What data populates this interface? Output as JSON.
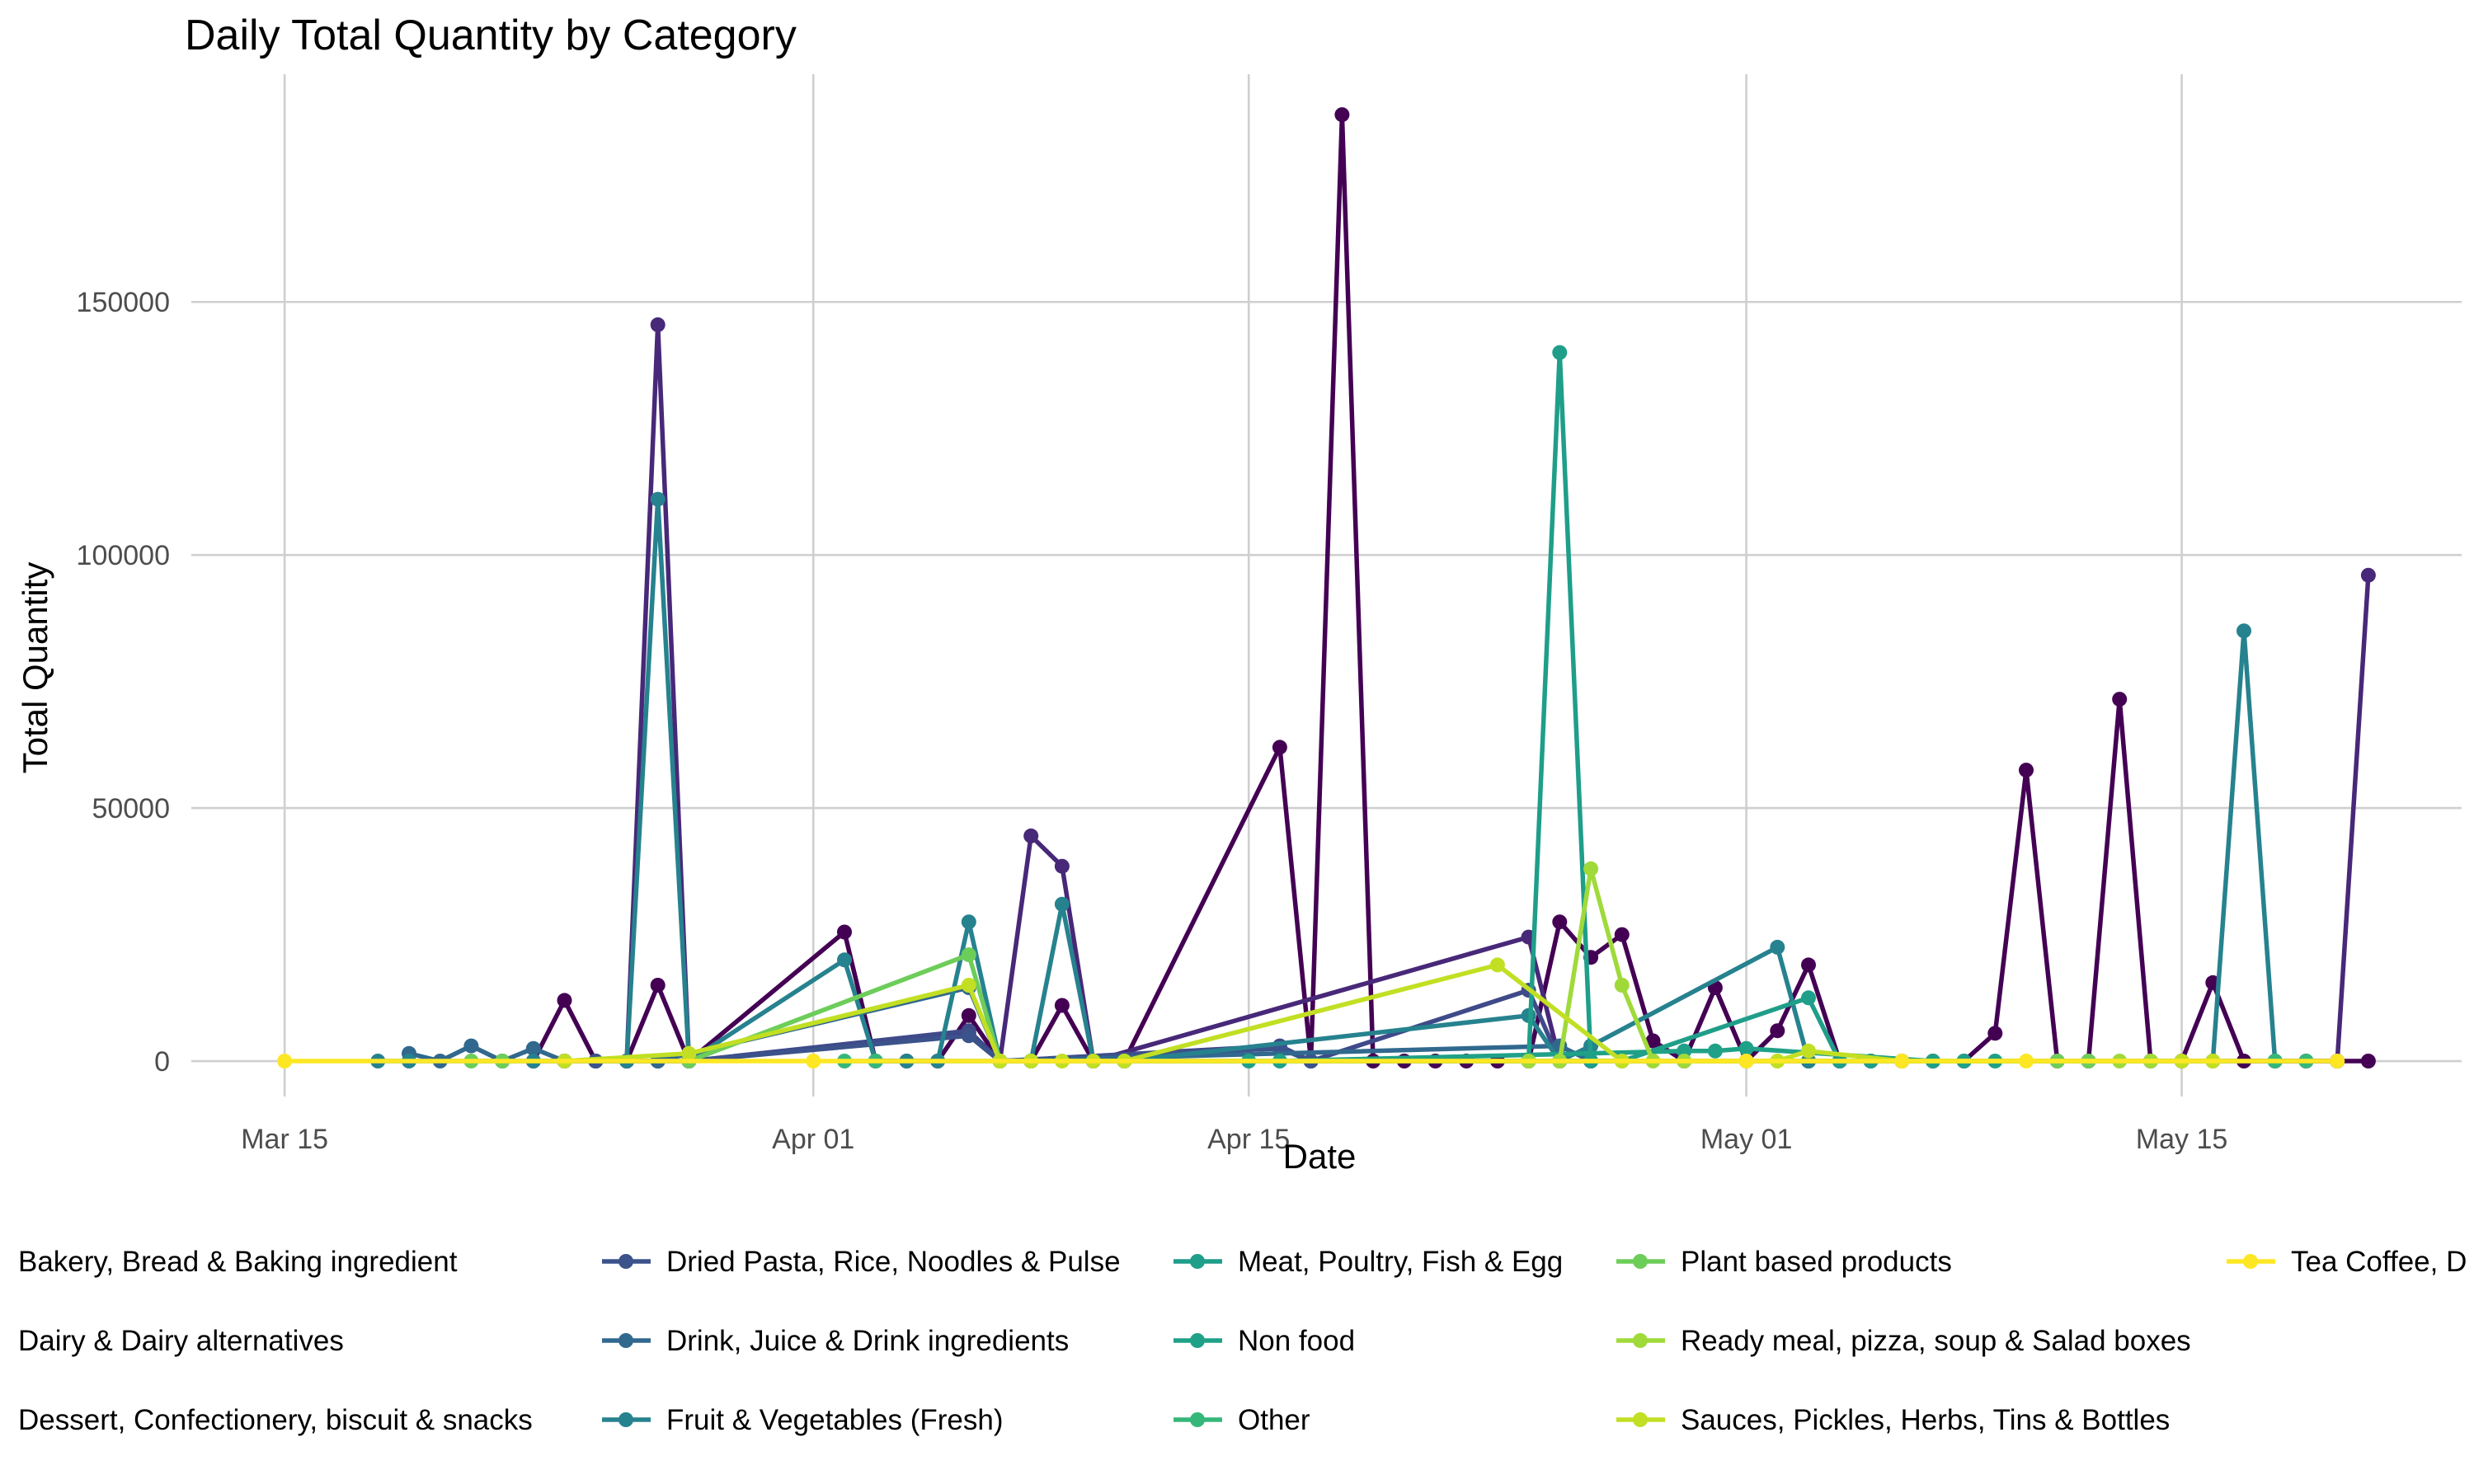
{
  "chart_data": {
    "type": "line",
    "title": "Daily Total Quantity by Category",
    "xlabel": "Date",
    "ylabel": "Total Quantity",
    "x_ticks": [
      "Mar 15",
      "Apr 01",
      "Apr 15",
      "May 01",
      "May 15"
    ],
    "x_tick_dates": [
      "2024-03-15",
      "2024-04-01",
      "2024-04-15",
      "2024-05-01",
      "2024-05-15"
    ],
    "y_ticks": [
      0,
      50000,
      100000,
      150000
    ],
    "y_tick_labels": [
      "0",
      "50000",
      "100000",
      "150000"
    ],
    "xlim": [
      "2024-03-12",
      "2024-05-24"
    ],
    "ylim": [
      -7000,
      195000
    ],
    "grid": true,
    "legend_position": "bottom",
    "series": [
      {
        "name": "Bakery, Bread & Baking ingredient",
        "color": "#440154",
        "points": [
          [
            "2024-03-23",
            0
          ],
          [
            "2024-03-24",
            12000
          ],
          [
            "2024-03-25",
            0
          ],
          [
            "2024-03-26",
            0
          ],
          [
            "2024-03-27",
            15000
          ],
          [
            "2024-03-28",
            0
          ],
          [
            "2024-04-02",
            25500
          ],
          [
            "2024-04-03",
            0
          ],
          [
            "2024-04-04",
            0
          ],
          [
            "2024-04-05",
            0
          ],
          [
            "2024-04-06",
            9000
          ],
          [
            "2024-04-07",
            0
          ],
          [
            "2024-04-08",
            0
          ],
          [
            "2024-04-09",
            11000
          ],
          [
            "2024-04-10",
            0
          ],
          [
            "2024-04-11",
            0
          ],
          [
            "2024-04-16",
            62000
          ],
          [
            "2024-04-17",
            0
          ],
          [
            "2024-04-18",
            187000
          ],
          [
            "2024-04-19",
            0
          ],
          [
            "2024-04-20",
            0
          ],
          [
            "2024-04-21",
            0
          ],
          [
            "2024-04-22",
            0
          ],
          [
            "2024-04-23",
            0
          ],
          [
            "2024-04-24",
            0
          ],
          [
            "2024-04-25",
            27500
          ],
          [
            "2024-04-26",
            20500
          ],
          [
            "2024-04-27",
            25000
          ],
          [
            "2024-04-28",
            4000
          ],
          [
            "2024-04-29",
            0
          ],
          [
            "2024-04-30",
            14500
          ],
          [
            "2024-05-01",
            0
          ],
          [
            "2024-05-02",
            6000
          ],
          [
            "2024-05-03",
            19000
          ],
          [
            "2024-05-04",
            0
          ],
          [
            "2024-05-05",
            0
          ],
          [
            "2024-05-06",
            0
          ],
          [
            "2024-05-07",
            0
          ],
          [
            "2024-05-08",
            0
          ],
          [
            "2024-05-09",
            5500
          ],
          [
            "2024-05-10",
            57500
          ],
          [
            "2024-05-11",
            0
          ],
          [
            "2024-05-12",
            0
          ],
          [
            "2024-05-13",
            71500
          ],
          [
            "2024-05-14",
            0
          ],
          [
            "2024-05-15",
            0
          ],
          [
            "2024-05-16",
            15500
          ],
          [
            "2024-05-17",
            0
          ],
          [
            "2024-05-18",
            0
          ],
          [
            "2024-05-19",
            0
          ],
          [
            "2024-05-20",
            0
          ],
          [
            "2024-05-21",
            0
          ]
        ]
      },
      {
        "name": "Dairy & Dairy alternatives",
        "color": "#482878",
        "points": [
          [
            "2024-03-25",
            0
          ],
          [
            "2024-03-26",
            0
          ],
          [
            "2024-03-27",
            145500
          ],
          [
            "2024-03-28",
            0
          ],
          [
            "2024-04-06",
            5500
          ],
          [
            "2024-04-07",
            0
          ],
          [
            "2024-04-08",
            44500
          ],
          [
            "2024-04-09",
            38500
          ],
          [
            "2024-04-10",
            0
          ],
          [
            "2024-04-24",
            24500
          ],
          [
            "2024-04-25",
            0
          ],
          [
            "2024-04-26",
            0
          ],
          [
            "2024-05-20",
            0
          ],
          [
            "2024-05-21",
            96000
          ]
        ]
      },
      {
        "name": "Dessert, Confectionery, biscuit & snacks",
        "color": "#3E4A89",
        "points": [
          [
            "2024-03-24",
            0
          ],
          [
            "2024-03-25",
            0
          ],
          [
            "2024-03-26",
            0
          ],
          [
            "2024-03-27",
            0
          ],
          [
            "2024-03-28",
            0
          ],
          [
            "2024-04-06",
            6000
          ],
          [
            "2024-04-07",
            0
          ],
          [
            "2024-04-16",
            3000
          ],
          [
            "2024-04-17",
            0
          ],
          [
            "2024-04-24",
            14000
          ],
          [
            "2024-04-25",
            0
          ],
          [
            "2024-05-03",
            0
          ],
          [
            "2024-05-04",
            0
          ]
        ]
      },
      {
        "name": "Dried Pasta, Rice, Noodles & Pulse",
        "color": "#3B528B",
        "points": [
          [
            "2024-03-23",
            0
          ],
          [
            "2024-03-24",
            0
          ],
          [
            "2024-03-25",
            0
          ],
          [
            "2024-03-26",
            0
          ],
          [
            "2024-03-27",
            0
          ],
          [
            "2024-03-28",
            0
          ],
          [
            "2024-04-06",
            5000
          ],
          [
            "2024-04-07",
            0
          ],
          [
            "2024-04-16",
            2500
          ],
          [
            "2024-04-17",
            0
          ],
          [
            "2024-05-03",
            0
          ],
          [
            "2024-05-06",
            0
          ]
        ]
      },
      {
        "name": "Drink, Juice & Drink ingredients",
        "color": "#31688E",
        "points": [
          [
            "2024-03-19",
            1500
          ],
          [
            "2024-03-20",
            0
          ],
          [
            "2024-03-21",
            3000
          ],
          [
            "2024-03-22",
            0
          ],
          [
            "2024-03-23",
            2500
          ],
          [
            "2024-03-24",
            0
          ],
          [
            "2024-03-27",
            0
          ],
          [
            "2024-04-06",
            14500
          ],
          [
            "2024-04-07",
            0
          ],
          [
            "2024-04-25",
            3000
          ],
          [
            "2024-04-26",
            0
          ],
          [
            "2024-05-03",
            0
          ]
        ]
      },
      {
        "name": "Fruit & Vegetables (Fresh)",
        "color": "#26828E",
        "points": [
          [
            "2024-03-18",
            0
          ],
          [
            "2024-03-19",
            0
          ],
          [
            "2024-03-22",
            0
          ],
          [
            "2024-03-23",
            0
          ],
          [
            "2024-03-26",
            0
          ],
          [
            "2024-03-27",
            111000
          ],
          [
            "2024-03-28",
            0
          ],
          [
            "2024-04-02",
            20000
          ],
          [
            "2024-04-03",
            0
          ],
          [
            "2024-04-04",
            0
          ],
          [
            "2024-04-05",
            0
          ],
          [
            "2024-04-06",
            27500
          ],
          [
            "2024-04-07",
            0
          ],
          [
            "2024-04-08",
            0
          ],
          [
            "2024-04-09",
            31000
          ],
          [
            "2024-04-10",
            0
          ],
          [
            "2024-04-11",
            0
          ],
          [
            "2024-04-24",
            9000
          ],
          [
            "2024-04-25",
            0
          ],
          [
            "2024-04-26",
            3000
          ],
          [
            "2024-05-02",
            22500
          ],
          [
            "2024-05-03",
            0
          ],
          [
            "2024-05-16",
            0
          ],
          [
            "2024-05-17",
            85000
          ],
          [
            "2024-05-18",
            0
          ]
        ]
      },
      {
        "name": "Meat, Poultry, Fish & Egg",
        "color": "#1F9E89",
        "points": [
          [
            "2024-04-11",
            0
          ],
          [
            "2024-04-24",
            0
          ],
          [
            "2024-04-25",
            140000
          ],
          [
            "2024-04-26",
            0
          ],
          [
            "2024-04-27",
            0
          ],
          [
            "2024-05-03",
            12500
          ],
          [
            "2024-05-04",
            0
          ],
          [
            "2024-05-05",
            0
          ]
        ]
      },
      {
        "name": "Non food",
        "color": "#1FA187",
        "points": [
          [
            "2024-04-15",
            0
          ],
          [
            "2024-04-16",
            0
          ],
          [
            "2024-04-29",
            2000
          ],
          [
            "2024-04-30",
            2000
          ],
          [
            "2024-05-01",
            2500
          ],
          [
            "2024-05-07",
            0
          ],
          [
            "2024-05-08",
            0
          ],
          [
            "2024-05-09",
            0
          ]
        ]
      },
      {
        "name": "Other",
        "color": "#35B779",
        "points": [
          [
            "2024-04-02",
            0
          ],
          [
            "2024-04-03",
            0
          ],
          [
            "2024-04-07",
            0
          ],
          [
            "2024-05-18",
            0
          ],
          [
            "2024-05-19",
            0
          ]
        ]
      },
      {
        "name": "Plant based products",
        "color": "#6DCD59",
        "points": [
          [
            "2024-03-21",
            0
          ],
          [
            "2024-03-22",
            0
          ],
          [
            "2024-03-28",
            0
          ],
          [
            "2024-04-06",
            21000
          ],
          [
            "2024-04-07",
            0
          ],
          [
            "2024-04-08",
            0
          ],
          [
            "2024-05-11",
            0
          ],
          [
            "2024-05-12",
            0
          ]
        ]
      },
      {
        "name": "Ready meal, pizza, soup & Salad boxes",
        "color": "#9FDA3A",
        "points": [
          [
            "2024-04-24",
            0
          ],
          [
            "2024-04-25",
            0
          ],
          [
            "2024-04-26",
            38000
          ],
          [
            "2024-04-27",
            15000
          ],
          [
            "2024-04-28",
            0
          ],
          [
            "2024-04-29",
            0
          ],
          [
            "2024-05-13",
            0
          ],
          [
            "2024-05-14",
            0
          ]
        ]
      },
      {
        "name": "Sauces, Pickles, Herbs, Tins & Bottles",
        "color": "#C2DF23",
        "points": [
          [
            "2024-03-24",
            0
          ],
          [
            "2024-03-28",
            1500
          ],
          [
            "2024-04-06",
            15000
          ],
          [
            "2024-04-07",
            0
          ],
          [
            "2024-04-08",
            0
          ],
          [
            "2024-04-09",
            0
          ],
          [
            "2024-04-10",
            0
          ],
          [
            "2024-04-11",
            0
          ],
          [
            "2024-04-23",
            19000
          ],
          [
            "2024-04-27",
            0
          ],
          [
            "2024-05-01",
            0
          ],
          [
            "2024-05-02",
            0
          ],
          [
            "2024-05-03",
            2000
          ],
          [
            "2024-05-06",
            0
          ],
          [
            "2024-05-15",
            0
          ],
          [
            "2024-05-16",
            0
          ]
        ]
      },
      {
        "name": "Tea Coffee, D",
        "color": "#FDE725",
        "points": [
          [
            "2024-03-15",
            0
          ],
          [
            "2024-04-01",
            0
          ],
          [
            "2024-05-01",
            0
          ],
          [
            "2024-05-06",
            0
          ],
          [
            "2024-05-10",
            0
          ],
          [
            "2024-05-20",
            0
          ]
        ]
      }
    ]
  }
}
